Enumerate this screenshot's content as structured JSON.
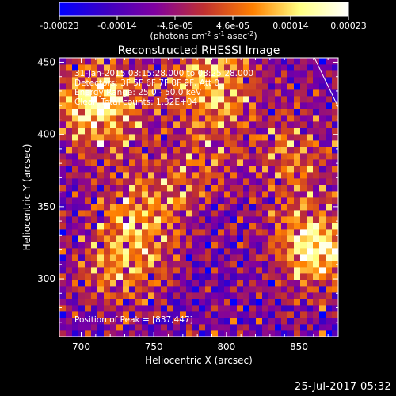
{
  "chart_data": {
    "type": "heatmap",
    "title": "Reconstructed RHESSI Image",
    "xlabel": "Heliocentric X (arcsec)",
    "ylabel": "Heliocentric Y (arcsec)",
    "xlim": [
      685,
      877
    ],
    "ylim": [
      260,
      453
    ],
    "xticks": [
      "700",
      "750",
      "800",
      "850"
    ],
    "yticks": [
      "300",
      "350",
      "400",
      "450"
    ],
    "colorbar": {
      "range": [
        -0.00023,
        0.00023
      ],
      "ticks": [
        "-0.00023",
        "-0.00014",
        "-4.6e-05",
        "4.6e-05",
        "0.00014",
        "0.00023"
      ],
      "unit_parts": [
        "(photons cm",
        "-2",
        " s",
        "-1",
        " asec",
        "-2",
        ")"
      ],
      "colors": [
        "#0000ff",
        "#4000c0",
        "#8000a0",
        "#c03030",
        "#ff8000",
        "#ffff80",
        "#ffffff"
      ]
    },
    "annotations": [
      "31-Jan-2015 03:15:28.000 to 03:25:28.000",
      "Detectors: 3F 5F 6F 7F 8F 9F, Att 0",
      "Energy Range: 25.0 - 50.0 keV",
      "Clean   Total counts: 1.32E+04"
    ],
    "peak_label": "Position of Peak = [837,447]",
    "peak": [
      837,
      447
    ],
    "bright_regions": [
      {
        "x": 712,
        "y": 420,
        "strength": 1.0
      },
      {
        "x": 862,
        "y": 322,
        "strength": 1.0
      },
      {
        "x": 790,
        "y": 435,
        "strength": 0.8
      },
      {
        "x": 745,
        "y": 345,
        "strength": 0.6
      },
      {
        "x": 725,
        "y": 310,
        "strength": 0.55
      },
      {
        "x": 845,
        "y": 385,
        "strength": 0.5
      },
      {
        "x": 780,
        "y": 380,
        "strength": 0.35
      }
    ]
  },
  "footer": {
    "date": "25-Jul-2017 05:32"
  }
}
